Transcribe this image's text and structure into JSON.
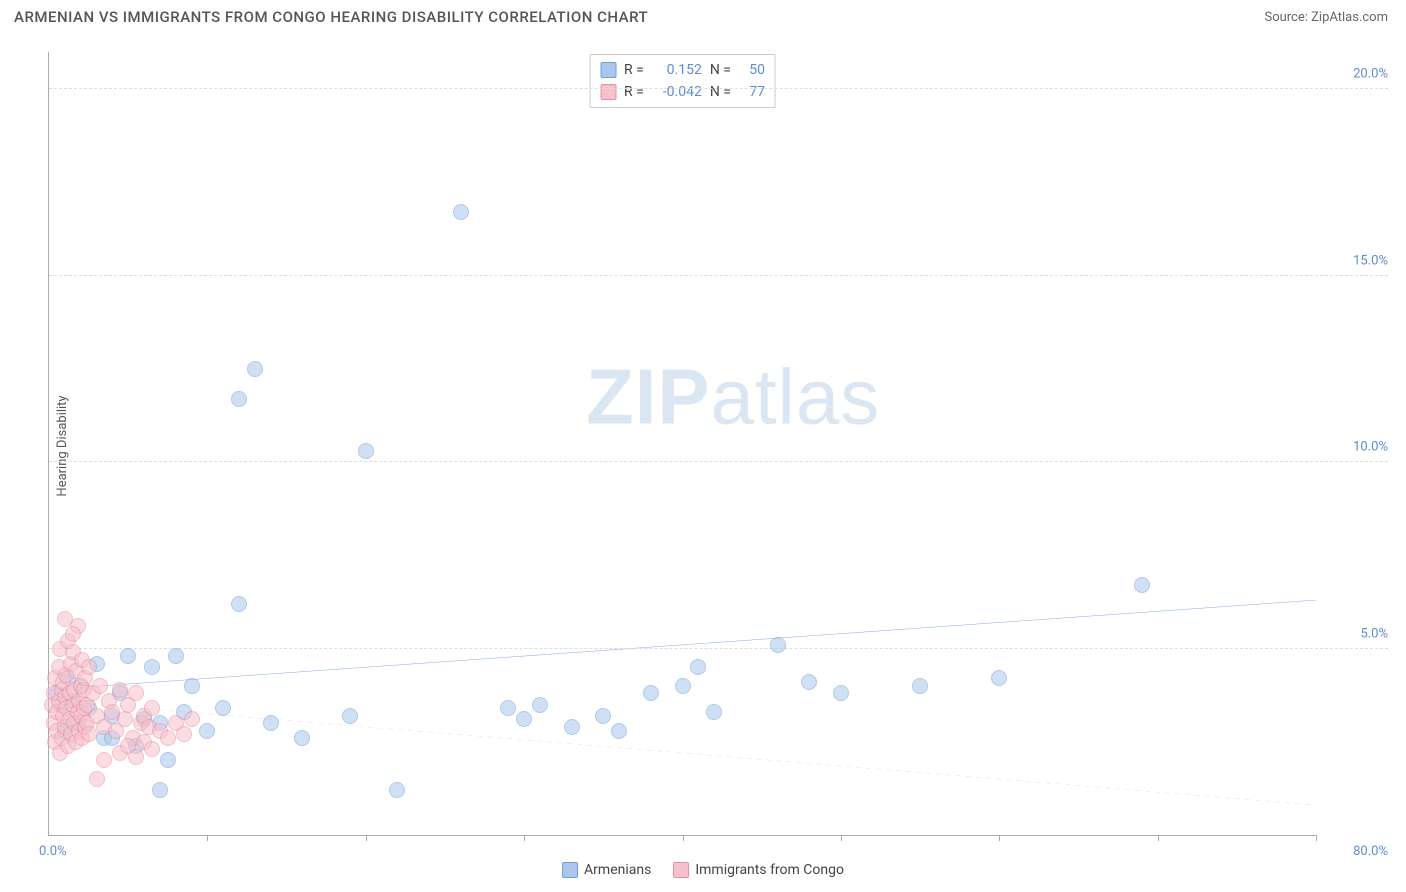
{
  "title": "ARMENIAN VS IMMIGRANTS FROM CONGO HEARING DISABILITY CORRELATION CHART",
  "source": "Source: ZipAtlas.com",
  "y_axis_label": "Hearing Disability",
  "watermark": {
    "bold": "ZIP",
    "light": "atlas"
  },
  "chart": {
    "type": "scatter",
    "background_color": "#ffffff",
    "grid_color": "#dddddd",
    "axis_color": "#aaaaaa",
    "xlim": [
      0,
      80
    ],
    "ylim": [
      0,
      21
    ],
    "x_origin_label": "0.0%",
    "x_max_label": "80.0%",
    "x_ticks": [
      10,
      20,
      30,
      40,
      50,
      60,
      70,
      80
    ],
    "y_gridlines": [
      {
        "value": 5,
        "label": "5.0%"
      },
      {
        "value": 10,
        "label": "10.0%"
      },
      {
        "value": 15,
        "label": "15.0%"
      },
      {
        "value": 20,
        "label": "20.0%"
      }
    ],
    "y_tick_color": "#5b8dd6",
    "marker_radius": 8,
    "marker_opacity": 0.55,
    "series": [
      {
        "name": "Armenians",
        "fill_color": "#a9c6ec",
        "stroke_color": "#6f9fd8",
        "points": [
          [
            0.5,
            3.8
          ],
          [
            0.8,
            3.5
          ],
          [
            1.0,
            2.8
          ],
          [
            1.2,
            4.2
          ],
          [
            1.5,
            3.6
          ],
          [
            1.8,
            3.0
          ],
          [
            2.0,
            4.0
          ],
          [
            2.5,
            3.4
          ],
          [
            3.0,
            4.6
          ],
          [
            3.5,
            2.6
          ],
          [
            4.0,
            3.2
          ],
          [
            4.5,
            3.8
          ],
          [
            5.0,
            4.8
          ],
          [
            5.5,
            2.4
          ],
          [
            6.0,
            3.1
          ],
          [
            6.5,
            4.5
          ],
          [
            7.0,
            3.0
          ],
          [
            7.5,
            2.0
          ],
          [
            8.0,
            4.8
          ],
          [
            8.5,
            3.3
          ],
          [
            9.0,
            4.0
          ],
          [
            10.0,
            2.8
          ],
          [
            11.0,
            3.4
          ],
          [
            12.0,
            6.2
          ],
          [
            12.0,
            11.7
          ],
          [
            13.0,
            12.5
          ],
          [
            14.0,
            3.0
          ],
          [
            16.0,
            2.6
          ],
          [
            19.0,
            3.2
          ],
          [
            20.0,
            10.3
          ],
          [
            22.0,
            1.2
          ],
          [
            26.0,
            16.7
          ],
          [
            29.0,
            3.4
          ],
          [
            30.0,
            3.1
          ],
          [
            31.0,
            3.5
          ],
          [
            33.0,
            2.9
          ],
          [
            35.0,
            3.2
          ],
          [
            36.0,
            2.8
          ],
          [
            38.0,
            3.8
          ],
          [
            40.0,
            4.0
          ],
          [
            41.0,
            4.5
          ],
          [
            42.0,
            3.3
          ],
          [
            46.0,
            5.1
          ],
          [
            48.0,
            4.1
          ],
          [
            50.0,
            3.8
          ],
          [
            55.0,
            4.0
          ],
          [
            60.0,
            4.2
          ],
          [
            69.0,
            6.7
          ],
          [
            7.0,
            1.2
          ],
          [
            4.0,
            2.6
          ]
        ],
        "trend": {
          "y_at_x0": 3.9,
          "y_at_xmax": 6.3,
          "color": "#2f6fd0",
          "width": 2.5,
          "dash": "none"
        },
        "stats": {
          "R": "0.152",
          "N": "50"
        }
      },
      {
        "name": "Immigrants from Congo",
        "fill_color": "#f6c1cc",
        "stroke_color": "#e88ca1",
        "points": [
          [
            0.2,
            3.5
          ],
          [
            0.3,
            3.0
          ],
          [
            0.3,
            3.8
          ],
          [
            0.4,
            2.5
          ],
          [
            0.4,
            4.2
          ],
          [
            0.5,
            3.3
          ],
          [
            0.5,
            2.8
          ],
          [
            0.6,
            4.5
          ],
          [
            0.6,
            3.6
          ],
          [
            0.7,
            2.2
          ],
          [
            0.7,
            5.0
          ],
          [
            0.8,
            3.9
          ],
          [
            0.8,
            2.6
          ],
          [
            0.9,
            4.1
          ],
          [
            0.9,
            3.2
          ],
          [
            1.0,
            3.7
          ],
          [
            1.0,
            2.9
          ],
          [
            1.1,
            4.3
          ],
          [
            1.1,
            3.4
          ],
          [
            1.2,
            2.4
          ],
          [
            1.2,
            5.2
          ],
          [
            1.3,
            3.8
          ],
          [
            1.3,
            3.1
          ],
          [
            1.4,
            4.6
          ],
          [
            1.4,
            2.7
          ],
          [
            1.5,
            3.5
          ],
          [
            1.5,
            4.9
          ],
          [
            1.6,
            3.0
          ],
          [
            1.6,
            3.9
          ],
          [
            1.7,
            2.5
          ],
          [
            1.7,
            4.4
          ],
          [
            1.8,
            3.3
          ],
          [
            1.8,
            5.6
          ],
          [
            1.9,
            2.8
          ],
          [
            1.9,
            3.6
          ],
          [
            2.0,
            4.0
          ],
          [
            2.0,
            3.2
          ],
          [
            2.1,
            2.6
          ],
          [
            2.1,
            4.7
          ],
          [
            2.2,
            3.4
          ],
          [
            2.2,
            3.9
          ],
          [
            2.3,
            2.9
          ],
          [
            2.3,
            4.2
          ],
          [
            2.4,
            3.5
          ],
          [
            2.4,
            3.0
          ],
          [
            2.5,
            4.5
          ],
          [
            2.5,
            2.7
          ],
          [
            2.8,
            3.8
          ],
          [
            3.0,
            3.2
          ],
          [
            3.2,
            4.0
          ],
          [
            3.5,
            2.9
          ],
          [
            3.8,
            3.6
          ],
          [
            4.0,
            3.3
          ],
          [
            4.2,
            2.8
          ],
          [
            4.5,
            3.9
          ],
          [
            4.8,
            3.1
          ],
          [
            5.0,
            3.5
          ],
          [
            5.3,
            2.6
          ],
          [
            5.5,
            3.8
          ],
          [
            5.8,
            3.0
          ],
          [
            6.0,
            3.2
          ],
          [
            6.3,
            2.9
          ],
          [
            6.5,
            3.4
          ],
          [
            3.0,
            1.5
          ],
          [
            3.5,
            2.0
          ],
          [
            4.5,
            2.2
          ],
          [
            5.0,
            2.4
          ],
          [
            5.5,
            2.1
          ],
          [
            6.0,
            2.5
          ],
          [
            6.5,
            2.3
          ],
          [
            7.0,
            2.8
          ],
          [
            7.5,
            2.6
          ],
          [
            8.0,
            3.0
          ],
          [
            8.5,
            2.7
          ],
          [
            9.0,
            3.1
          ],
          [
            1.0,
            5.8
          ],
          [
            1.5,
            5.4
          ]
        ],
        "trend": {
          "y_at_x0": 3.6,
          "y_at_xmax": 0.8,
          "color": "#d9798f",
          "width": 1.3,
          "dash": "5,5"
        },
        "stats": {
          "R": "-0.042",
          "N": "77"
        }
      }
    ]
  },
  "legend_labels": {
    "R": "R =",
    "N": "N ="
  }
}
